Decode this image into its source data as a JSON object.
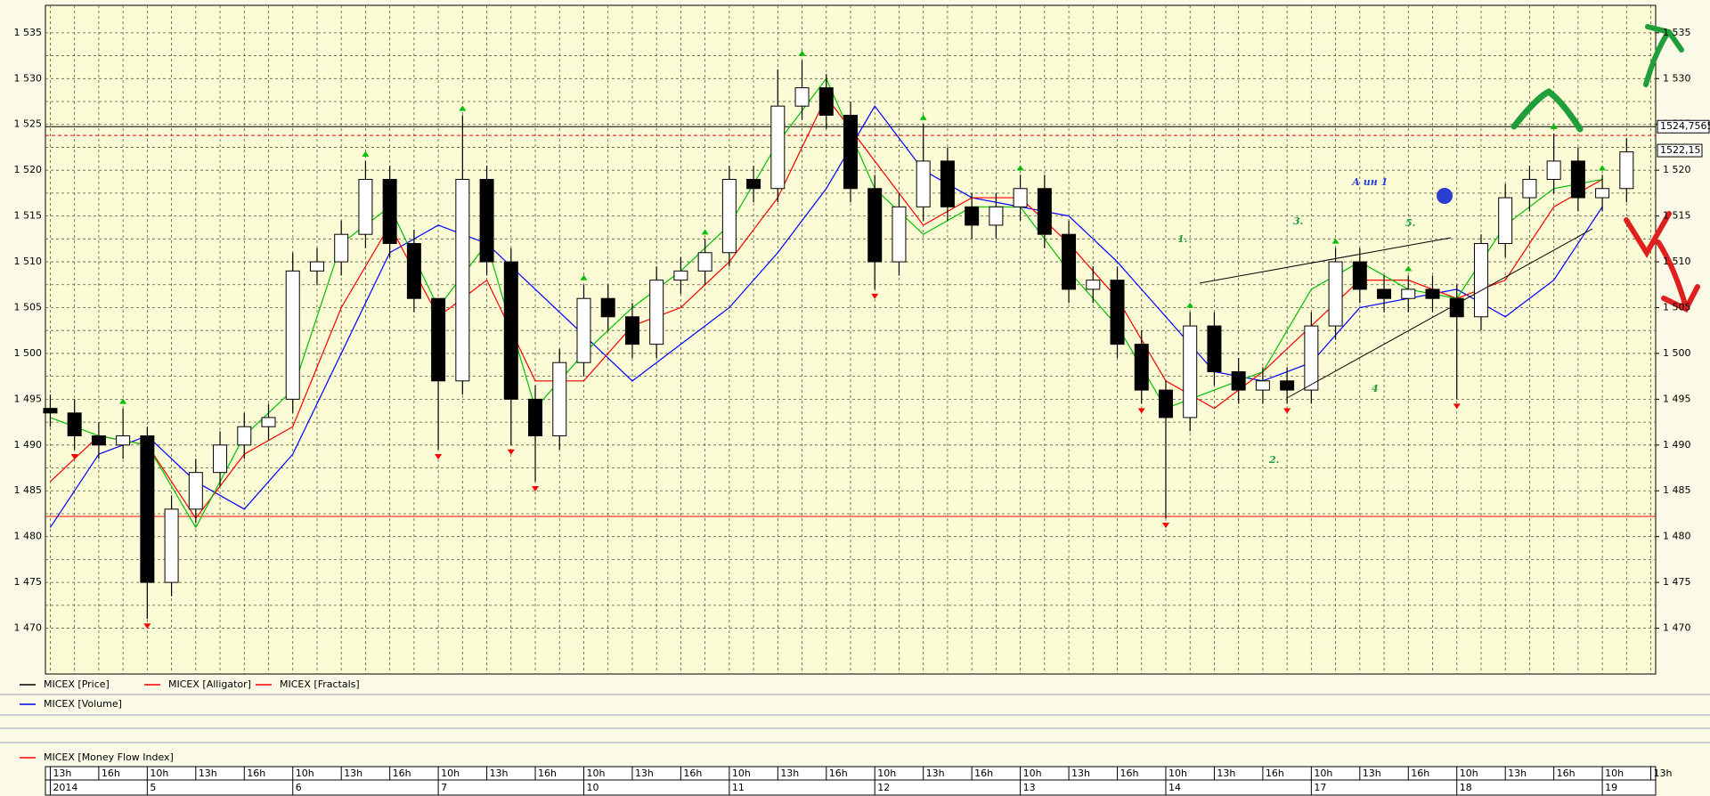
{
  "chart_data": {
    "type": "candlestick",
    "xlim": [
      -0.2,
      66.2
    ],
    "ylim": [
      1465,
      1538
    ],
    "yticks": [
      {
        "value": 1470,
        "label": "1 470"
      },
      {
        "value": 1475,
        "label": "1 475"
      },
      {
        "value": 1480,
        "label": "1 480"
      },
      {
        "value": 1485,
        "label": "1 485"
      },
      {
        "value": 1490,
        "label": "1 490"
      },
      {
        "value": 1495,
        "label": "1 495"
      },
      {
        "value": 1500,
        "label": "1 500"
      },
      {
        "value": 1505,
        "label": "1 505"
      },
      {
        "value": 1510,
        "label": "1 510"
      },
      {
        "value": 1515,
        "label": "1 515"
      },
      {
        "value": 1520,
        "label": "1 520"
      },
      {
        "value": 1525,
        "label": "1 525"
      },
      {
        "value": 1530,
        "label": "1 530"
      },
      {
        "value": 1535,
        "label": "1 535"
      }
    ],
    "xticks": [
      {
        "value": 0,
        "label": "13h"
      },
      {
        "value": 2,
        "label": "16h"
      },
      {
        "value": 4,
        "label": "10h"
      },
      {
        "value": 6,
        "label": "13h"
      },
      {
        "value": 8,
        "label": "16h"
      },
      {
        "value": 10,
        "label": "10h"
      },
      {
        "value": 12,
        "label": "13h"
      },
      {
        "value": 14,
        "label": "16h"
      },
      {
        "value": 16,
        "label": "10h"
      },
      {
        "value": 18,
        "label": "13h"
      },
      {
        "value": 20,
        "label": "16h"
      },
      {
        "value": 22,
        "label": "10h"
      },
      {
        "value": 24,
        "label": "13h"
      },
      {
        "value": 26,
        "label": "16h"
      },
      {
        "value": 28,
        "label": "10h"
      },
      {
        "value": 30,
        "label": "13h"
      },
      {
        "value": 32,
        "label": "16h"
      },
      {
        "value": 34,
        "label": "10h"
      },
      {
        "value": 36,
        "label": "13h"
      },
      {
        "value": 38,
        "label": "16h"
      },
      {
        "value": 40,
        "label": "10h"
      },
      {
        "value": 42,
        "label": "13h"
      },
      {
        "value": 44,
        "label": "16h"
      },
      {
        "value": 46,
        "label": "10h"
      },
      {
        "value": 48,
        "label": "13h"
      },
      {
        "value": 50,
        "label": "16h"
      },
      {
        "value": 52,
        "label": "10h"
      },
      {
        "value": 54,
        "label": "13h"
      },
      {
        "value": 56,
        "label": "16h"
      },
      {
        "value": 58,
        "label": "10h"
      },
      {
        "value": 60,
        "label": "13h"
      },
      {
        "value": 62,
        "label": "16h"
      },
      {
        "value": 64,
        "label": "10h"
      },
      {
        "value": 66,
        "label": "13h"
      }
    ],
    "day_ticks": [
      {
        "value": 0,
        "label": "2014"
      },
      {
        "value": 4,
        "label": "5"
      },
      {
        "value": 10,
        "label": "6"
      },
      {
        "value": 16,
        "label": "7"
      },
      {
        "value": 22,
        "label": "10"
      },
      {
        "value": 28,
        "label": "11"
      },
      {
        "value": 34,
        "label": "12"
      },
      {
        "value": 40,
        "label": "13"
      },
      {
        "value": 46,
        "label": "14"
      },
      {
        "value": 52,
        "label": "17"
      },
      {
        "value": 58,
        "label": "18"
      },
      {
        "value": 64,
        "label": "19"
      }
    ],
    "grid": true,
    "candles": {
      "open": [
        1494,
        1493.5,
        1491,
        1490,
        1491,
        1475,
        1483,
        1487,
        1490,
        1492,
        1495,
        1509,
        1510,
        1513,
        1519,
        1512,
        1506,
        1497,
        1519,
        1510,
        1495,
        1491,
        1499,
        1506,
        1504,
        1501,
        1508,
        1509,
        1511,
        1519,
        1518,
        1527,
        1529,
        1526,
        1518,
        1510,
        1516,
        1521,
        1516,
        1514,
        1516,
        1518,
        1513,
        1507,
        1508,
        1501,
        1496,
        1493,
        1503,
        1498,
        1496,
        1497,
        1496,
        1503,
        1510,
        1507,
        1506,
        1507,
        1506,
        1504,
        1512,
        1517,
        1519,
        1521,
        1517,
        1518
      ],
      "high": [
        1495.5,
        1495,
        1492.5,
        1494,
        1492,
        1484.5,
        1488.5,
        1491.5,
        1493.5,
        1494.5,
        1511,
        1511.5,
        1514.5,
        1521,
        1520.5,
        1513.5,
        1501,
        1526,
        1520.5,
        1511.5,
        1496.5,
        1500.5,
        1507.5,
        1507.5,
        1505.5,
        1509.5,
        1510.5,
        1512.5,
        1520.5,
        1520.5,
        1531,
        1532,
        1530.5,
        1527.5,
        1519.5,
        1517.5,
        1525,
        1522.5,
        1517.5,
        1517.5,
        1519.5,
        1519.5,
        1514.5,
        1509.5,
        1509.5,
        1502.5,
        1497,
        1504.5,
        1504.5,
        1499.5,
        1498.5,
        1498.5,
        1504.5,
        1511.5,
        1511.5,
        1508.5,
        1508.5,
        1508.5,
        1507.5,
        1513,
        1518.5,
        1520.5,
        1524,
        1522.5,
        1519.5,
        1523.5
      ],
      "low": [
        1492,
        1489.5,
        1488.5,
        1488.5,
        1471,
        1473.5,
        1481.5,
        1485.5,
        1488.5,
        1490.5,
        1493.5,
        1507.5,
        1508.5,
        1511.5,
        1510.5,
        1504.5,
        1489.5,
        1495.5,
        1508.5,
        1490,
        1486,
        1489.5,
        1497.5,
        1502.5,
        1499.5,
        1499.5,
        1506.5,
        1507.5,
        1509.5,
        1516.5,
        1516.5,
        1525.5,
        1524.5,
        1516.5,
        1507,
        1508.5,
        1514.5,
        1514.5,
        1512.5,
        1512.5,
        1514.5,
        1511.5,
        1505.5,
        1505.5,
        1499.5,
        1494.5,
        1482,
        1491.5,
        1496.5,
        1494.5,
        1494.5,
        1494.5,
        1494.5,
        1501.5,
        1505.5,
        1504.5,
        1504.5,
        1504.5,
        1495,
        1502.5,
        1510.5,
        1515.5,
        1517.5,
        1515.5,
        1515.5,
        1516.5
      ],
      "close": [
        1493.5,
        1491,
        1490,
        1491,
        1475,
        1483,
        1487,
        1490,
        1492,
        1493,
        1509,
        1510,
        1513,
        1519,
        1512,
        1506,
        1497,
        1519,
        1510,
        1495,
        1491,
        1499,
        1506,
        1504,
        1501,
        1508,
        1509,
        1511,
        1519,
        1518,
        1527,
        1529,
        1526,
        1518,
        1510,
        1516,
        1521,
        1516,
        1514,
        1516,
        1518,
        1513,
        1507,
        1508,
        1501,
        1496,
        1493,
        1503,
        1498,
        1496,
        1497,
        1496,
        1503,
        1510,
        1507,
        1506,
        1507,
        1506,
        1504,
        1512,
        1517,
        1519,
        1521,
        1517,
        1518,
        1522
      ],
      "up_color": "#ffffff",
      "down_color": "#000000"
    },
    "alligator_x": [
      0,
      2,
      4,
      6,
      8,
      10,
      12,
      14,
      16,
      18,
      20,
      22,
      24,
      26,
      28,
      30,
      32,
      34,
      36,
      38,
      40,
      42,
      44,
      46,
      48,
      50,
      52,
      54,
      56,
      58,
      60,
      62,
      64
    ],
    "alligator": [
      {
        "color": "#0000ff",
        "values": [
          1481,
          1489,
          1491,
          1486,
          1483,
          1489,
          1500,
          1511,
          1514,
          1512,
          1507,
          1502,
          1497,
          1501,
          1505,
          1511,
          1518,
          1527,
          1520,
          1517,
          1516,
          1515,
          1510,
          1504,
          1498,
          1497,
          1499,
          1505,
          1506,
          1507,
          1504,
          1508,
          1516
        ]
      },
      {
        "color": "#ff0000",
        "values": [
          1486,
          1491,
          1490,
          1482,
          1489,
          1492,
          1505,
          1514,
          1504,
          1508,
          1497,
          1497,
          1503,
          1505,
          1510,
          1517,
          1528,
          1521,
          1514,
          1517,
          1517,
          1512,
          1506,
          1497,
          1494,
          1498,
          1503,
          1508,
          1508,
          1506,
          1508,
          1516,
          1519
        ]
      },
      {
        "color": "#00c000",
        "values": [
          1493,
          1491,
          1490,
          1481,
          1491,
          1496,
          1512,
          1516,
          1505,
          1512,
          1494,
          1500,
          1505,
          1509,
          1514,
          1523,
          1530,
          1518,
          1513,
          1516,
          1516,
          1509,
          1503,
          1494,
          1496,
          1498,
          1507,
          1510,
          1507,
          1506,
          1514,
          1518,
          1519
        ]
      }
    ],
    "fractals": {
      "up": {
        "color": "#00c000",
        "x": [
          3,
          13,
          17,
          22,
          27,
          31,
          36,
          40,
          47,
          53,
          56,
          62,
          64
        ],
        "values": [
          1494,
          1521,
          1526,
          1507.5,
          1512.5,
          1532,
          1525,
          1519.5,
          1504.5,
          1511.5,
          1508.5,
          1524,
          1519.5
        ]
      },
      "down": {
        "color": "#ff0000",
        "x": [
          1,
          4,
          16,
          19,
          20,
          34,
          45,
          46,
          51,
          58
        ],
        "values": [
          1489.5,
          1471,
          1489.5,
          1490,
          1486,
          1507,
          1494.5,
          1482,
          1494.5,
          1495
        ]
      }
    },
    "levels": [
      {
        "value": 1524.7565,
        "label": "1524,7565",
        "color": "#000000",
        "dashed": false
      },
      {
        "value": 1523.8,
        "color": "#ff0000",
        "dashed": true
      },
      {
        "value": 1482.2,
        "color": "#ff0000",
        "dashed": false
      }
    ],
    "last_price": {
      "value": 1522.15,
      "label": "1522,15"
    },
    "legend": [
      {
        "name": "MICEX [Price]",
        "color": "#000000"
      },
      {
        "name": "MICEX [Alligator]",
        "color": "#ff0000"
      },
      {
        "name": "MICEX [Fractals]",
        "color": "#ff0000"
      },
      {
        "name": "MICEX [Volume]",
        "color": "#0000ff"
      },
      {
        "name": "MICEX [Money Flow Index]",
        "color": "#ff0000"
      }
    ],
    "annotations": [
      "1.",
      "2.",
      "3.",
      "4",
      "5.",
      "А ин 1"
    ]
  }
}
